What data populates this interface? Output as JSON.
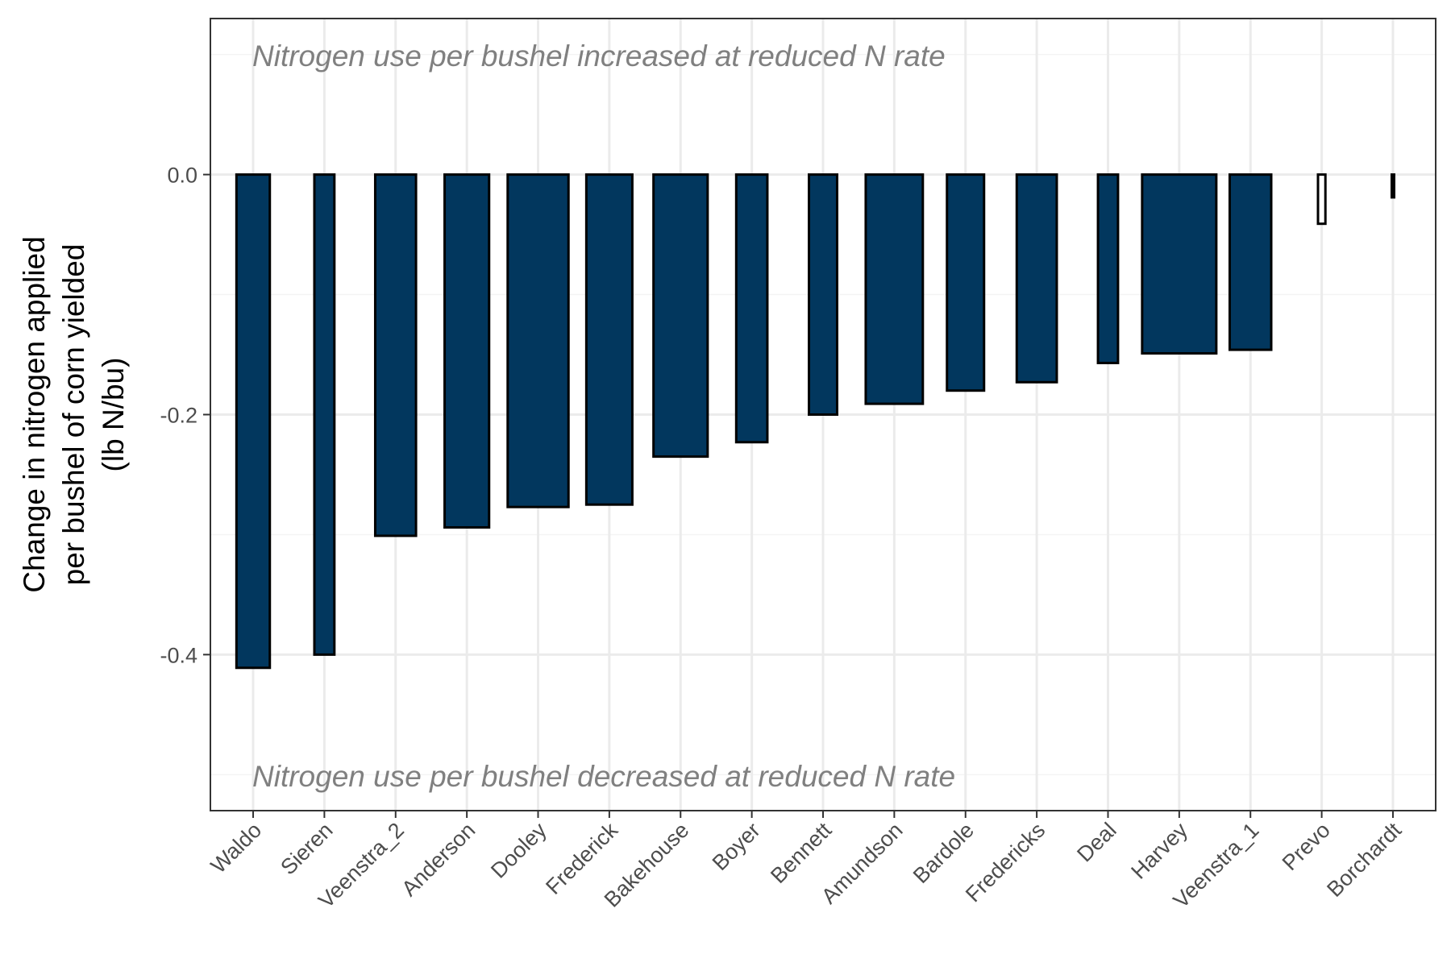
{
  "colors": {
    "bar_fill": "#02375e",
    "bar_fill_light": "#ffffff",
    "bar_stroke": "#000000",
    "grid_major": "#ebebeb",
    "grid_minor": "#f4f4f4",
    "panel_border": "#333333"
  },
  "chart_data": {
    "type": "bar",
    "ylabel_lines": [
      "Change in nitrogen applied",
      "per bushel of corn yielded",
      "(lb N/bu)"
    ],
    "annotations": {
      "top": "Nitrogen use per bushel increased at reduced N rate",
      "bottom": "Nitrogen use per bushel decreased at reduced N rate"
    },
    "ylim": [
      -0.53,
      0.13
    ],
    "yticks": [
      0.0,
      -0.2,
      -0.4
    ],
    "ytick_labels": [
      "0.0",
      "-0.2",
      "-0.4"
    ],
    "grid": true,
    "categories": [
      "Waldo",
      "Sieren",
      "Veenstra_2",
      "Anderson",
      "Dooley",
      "Frederick",
      "Bakehouse",
      "Boyer",
      "Bennett",
      "Amundson",
      "Bardole",
      "Fredericks",
      "Deal",
      "Harvey",
      "Veenstra_1",
      "Prevo",
      "Borchardt"
    ],
    "values": [
      -0.411,
      -0.4,
      -0.301,
      -0.294,
      -0.277,
      -0.275,
      -0.235,
      -0.223,
      -0.2,
      -0.191,
      -0.18,
      -0.173,
      -0.157,
      -0.149,
      -0.146,
      -0.041,
      -0.019
    ],
    "bar_widths": [
      0.45,
      0.27,
      0.55,
      0.6,
      0.82,
      0.62,
      0.73,
      0.42,
      0.38,
      0.77,
      0.5,
      0.54,
      0.27,
      1.0,
      0.56,
      0.1,
      0.03
    ],
    "bar_fills": [
      "dark",
      "dark",
      "dark",
      "dark",
      "dark",
      "dark",
      "dark",
      "dark",
      "dark",
      "dark",
      "dark",
      "dark",
      "dark",
      "dark",
      "dark",
      "light",
      "light"
    ]
  }
}
